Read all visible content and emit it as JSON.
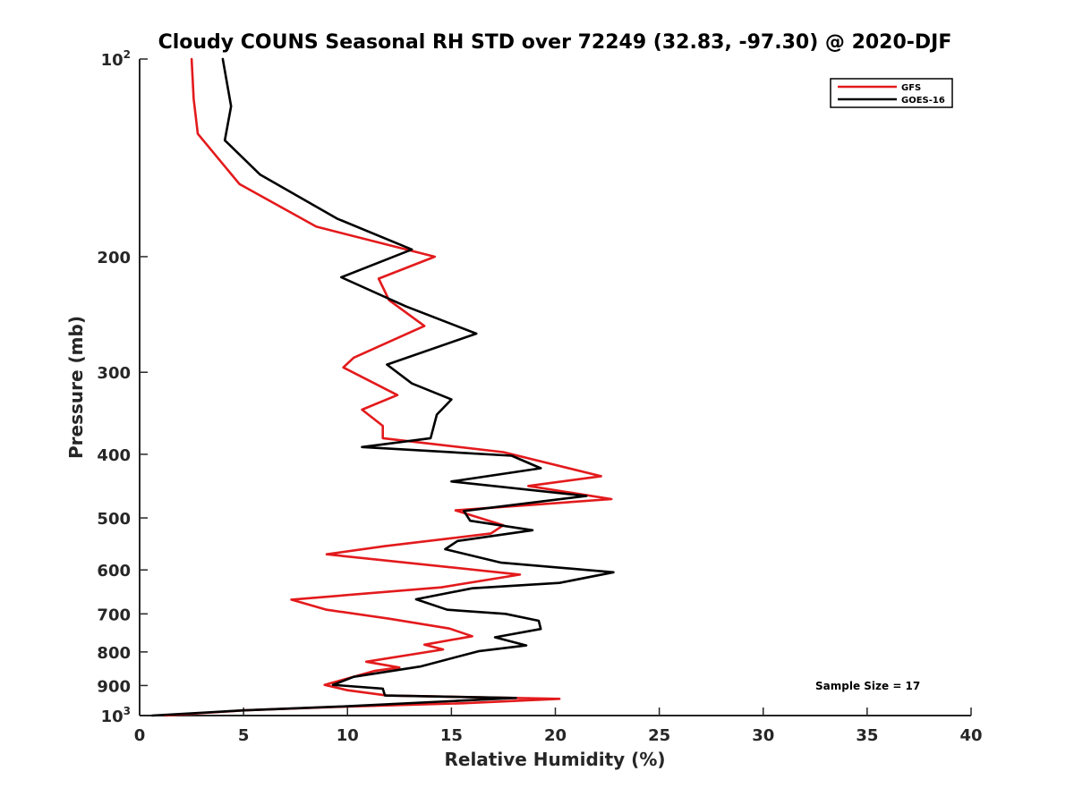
{
  "chart_data": {
    "type": "line",
    "title": "Cloudy COUNS Seasonal RH STD over 72249 (32.83, -97.30) @ 2020-DJF",
    "xlabel": "Relative Humidity (%)",
    "ylabel": "Pressure (mb)",
    "xlim": [
      0,
      40
    ],
    "ylim": [
      100,
      1000
    ],
    "yscale": "log",
    "yreversed": true,
    "x_ticks": [
      {
        "value": 0,
        "label": "0"
      },
      {
        "value": 5,
        "label": "5"
      },
      {
        "value": 10,
        "label": "10"
      },
      {
        "value": 15,
        "label": "15"
      },
      {
        "value": 20,
        "label": "20"
      },
      {
        "value": 25,
        "label": "25"
      },
      {
        "value": 30,
        "label": "30"
      },
      {
        "value": 35,
        "label": "35"
      },
      {
        "value": 40,
        "label": "40"
      }
    ],
    "y_ticks": [
      {
        "value": 100,
        "base": "10",
        "exp": "2"
      },
      {
        "value": 200,
        "label": "200"
      },
      {
        "value": 300,
        "label": "300"
      },
      {
        "value": 400,
        "label": "400"
      },
      {
        "value": 500,
        "label": "500"
      },
      {
        "value": 600,
        "label": "600"
      },
      {
        "value": 700,
        "label": "700"
      },
      {
        "value": 800,
        "label": "800"
      },
      {
        "value": 900,
        "label": "900"
      },
      {
        "value": 1000,
        "base": "10",
        "exp": "3"
      }
    ],
    "grid": false,
    "legend_position": "top-right",
    "annotation": "Sample Size = 17",
    "series": [
      {
        "name": "GFS",
        "color": "#e31a1c",
        "points": [
          [
            2.5,
            100
          ],
          [
            2.6,
            115
          ],
          [
            2.8,
            130
          ],
          [
            4.8,
            155
          ],
          [
            8.5,
            180
          ],
          [
            14.2,
            200
          ],
          [
            11.5,
            216
          ],
          [
            12.0,
            233
          ],
          [
            13.7,
            255
          ],
          [
            10.3,
            285
          ],
          [
            9.8,
            295
          ],
          [
            12.4,
            325
          ],
          [
            10.7,
            342
          ],
          [
            11.7,
            362
          ],
          [
            11.7,
            378
          ],
          [
            17.5,
            397
          ],
          [
            22.2,
            432
          ],
          [
            18.7,
            447
          ],
          [
            22.7,
            468
          ],
          [
            15.2,
            487
          ],
          [
            17.5,
            513
          ],
          [
            16.9,
            528
          ],
          [
            11.8,
            552
          ],
          [
            9.0,
            568
          ],
          [
            18.3,
            610
          ],
          [
            14.5,
            638
          ],
          [
            7.3,
            666
          ],
          [
            9.0,
            690
          ],
          [
            12.0,
            712
          ],
          [
            14.9,
            737
          ],
          [
            16.0,
            757
          ],
          [
            13.7,
            780
          ],
          [
            14.6,
            793
          ],
          [
            10.9,
            828
          ],
          [
            12.5,
            845
          ],
          [
            11.3,
            855
          ],
          [
            8.9,
            898
          ],
          [
            10.0,
            915
          ],
          [
            11.9,
            932
          ],
          [
            20.2,
            943
          ],
          [
            15.5,
            958
          ],
          [
            9.5,
            970
          ],
          [
            5.0,
            982
          ],
          [
            1.2,
            1000
          ]
        ]
      },
      {
        "name": "GOES-16",
        "color": "#000000",
        "points": [
          [
            4.0,
            100
          ],
          [
            4.4,
            118
          ],
          [
            4.1,
            133
          ],
          [
            5.8,
            150
          ],
          [
            9.5,
            175
          ],
          [
            13.1,
            195
          ],
          [
            9.7,
            215
          ],
          [
            12.8,
            238
          ],
          [
            16.2,
            262
          ],
          [
            11.9,
            292
          ],
          [
            13.1,
            312
          ],
          [
            15.0,
            330
          ],
          [
            14.3,
            348
          ],
          [
            14.0,
            378
          ],
          [
            10.7,
            390
          ],
          [
            17.9,
            402
          ],
          [
            19.3,
            420
          ],
          [
            15.0,
            440
          ],
          [
            21.5,
            463
          ],
          [
            15.6,
            488
          ],
          [
            15.9,
            505
          ],
          [
            18.9,
            522
          ],
          [
            15.3,
            542
          ],
          [
            14.7,
            558
          ],
          [
            17.4,
            585
          ],
          [
            22.8,
            605
          ],
          [
            20.2,
            628
          ],
          [
            16.0,
            640
          ],
          [
            13.3,
            665
          ],
          [
            14.8,
            690
          ],
          [
            17.6,
            700
          ],
          [
            19.2,
            717
          ],
          [
            19.3,
            738
          ],
          [
            17.1,
            760
          ],
          [
            18.6,
            782
          ],
          [
            16.3,
            798
          ],
          [
            13.5,
            842
          ],
          [
            10.3,
            873
          ],
          [
            9.3,
            898
          ],
          [
            11.7,
            910
          ],
          [
            11.8,
            932
          ],
          [
            18.1,
            940
          ],
          [
            10.0,
            968
          ],
          [
            5.0,
            982
          ],
          [
            0.6,
            1000
          ]
        ]
      }
    ]
  }
}
